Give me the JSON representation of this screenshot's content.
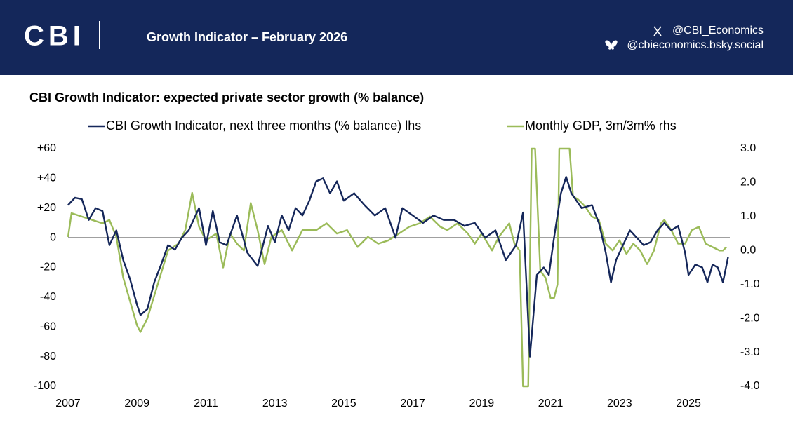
{
  "header": {
    "logo": "CBI",
    "title": "Growth Indicator – February 2026",
    "x_handle": "@CBI_Economics",
    "bluesky_handle": "@cbieconomics.bsky.social"
  },
  "chart_data": {
    "type": "line",
    "title": "CBI Growth Indicator: expected private sector growth (% balance)",
    "xlim": [
      2007,
      2026.2
    ],
    "xticks": [
      2007,
      2009,
      2011,
      2013,
      2015,
      2017,
      2019,
      2021,
      2023,
      2025
    ],
    "ylim": [
      -100,
      60
    ],
    "yticks": [
      {
        "value": 60,
        "label": "+60"
      },
      {
        "value": 40,
        "label": "+40"
      },
      {
        "value": 20,
        "label": "+20"
      },
      0,
      -20,
      -40,
      -60,
      -80,
      -100
    ],
    "y2lim": [
      -4,
      3
    ],
    "y2ticks": [
      {
        "value": 3,
        "label": "3.0"
      },
      {
        "value": 2,
        "label": "2.0"
      },
      {
        "value": 1,
        "label": "1.0"
      },
      {
        "value": 0,
        "label": "0.0"
      },
      {
        "value": -1,
        "label": "-1.0"
      },
      {
        "value": -2,
        "label": "-2.0"
      },
      {
        "value": -3,
        "label": "-3.0"
      },
      {
        "value": -4,
        "label": "-4.0"
      }
    ],
    "legend": "top",
    "series": [
      {
        "name": "CBI Growth Indicator, next three months (% balance) lhs",
        "color": "#15275a",
        "x": [
          2007.0,
          2007.2,
          2007.4,
          2007.6,
          2007.8,
          2008.0,
          2008.2,
          2008.4,
          2008.6,
          2008.8,
          2009.0,
          2009.1,
          2009.3,
          2009.5,
          2009.7,
          2009.9,
          2010.1,
          2010.3,
          2010.5,
          2010.8,
          2011.0,
          2011.2,
          2011.4,
          2011.6,
          2011.9,
          2012.2,
          2012.5,
          2012.8,
          2013.0,
          2013.2,
          2013.4,
          2013.6,
          2013.8,
          2014.0,
          2014.2,
          2014.4,
          2014.6,
          2014.8,
          2015.0,
          2015.3,
          2015.6,
          2015.9,
          2016.2,
          2016.5,
          2016.7,
          2017.0,
          2017.3,
          2017.6,
          2017.9,
          2018.2,
          2018.5,
          2018.8,
          2019.1,
          2019.4,
          2019.7,
          2020.0,
          2020.2,
          2020.4,
          2020.6,
          2020.8,
          2020.95,
          2021.1,
          2021.3,
          2021.45,
          2021.6,
          2021.9,
          2022.2,
          2022.4,
          2022.6,
          2022.75,
          2022.9,
          2023.1,
          2023.3,
          2023.5,
          2023.7,
          2023.9,
          2024.1,
          2024.3,
          2024.5,
          2024.7,
          2024.9,
          2025.0,
          2025.2,
          2025.4,
          2025.55,
          2025.7,
          2025.85,
          2026.0,
          2026.15
        ],
        "values": [
          22,
          27,
          26,
          12,
          20,
          18,
          -5,
          5,
          -15,
          -28,
          -45,
          -52,
          -48,
          -30,
          -18,
          -5,
          -8,
          0,
          5,
          20,
          -5,
          18,
          -3,
          -5,
          15,
          -10,
          -19,
          8,
          -3,
          15,
          5,
          20,
          15,
          25,
          38,
          40,
          30,
          38,
          25,
          30,
          22,
          15,
          20,
          0,
          20,
          15,
          10,
          15,
          12,
          12,
          8,
          10,
          0,
          5,
          -15,
          -5,
          17,
          -80,
          -25,
          -20,
          -25,
          0,
          30,
          41,
          30,
          20,
          22,
          10,
          -10,
          -30,
          -15,
          -5,
          5,
          0,
          -5,
          -3,
          5,
          10,
          5,
          8,
          -10,
          -25,
          -18,
          -20,
          -30,
          -18,
          -20,
          -30,
          -13
        ]
      },
      {
        "name": "Monthly GDP, 3m/3m% rhs",
        "color": "#9bbb59",
        "axis": "y2",
        "x": [
          2007.0,
          2007.1,
          2007.4,
          2007.7,
          2008.0,
          2008.2,
          2008.4,
          2008.6,
          2008.8,
          2009.0,
          2009.1,
          2009.3,
          2009.6,
          2009.9,
          2010.2,
          2010.4,
          2010.6,
          2010.8,
          2011.0,
          2011.3,
          2011.5,
          2011.7,
          2011.9,
          2012.1,
          2012.3,
          2012.5,
          2012.7,
          2012.9,
          2013.2,
          2013.5,
          2013.8,
          2014.2,
          2014.5,
          2014.8,
          2015.1,
          2015.4,
          2015.7,
          2016.0,
          2016.3,
          2016.6,
          2016.9,
          2017.2,
          2017.5,
          2017.8,
          2018.0,
          2018.3,
          2018.6,
          2018.8,
          2019.0,
          2019.3,
          2019.5,
          2019.8,
          2019.95,
          2020.1,
          2020.2,
          2020.35,
          2020.45,
          2020.55,
          2020.7,
          2020.85,
          2021.0,
          2021.1,
          2021.2,
          2021.25,
          2021.55,
          2021.65,
          2021.8,
          2022.0,
          2022.2,
          2022.4,
          2022.6,
          2022.8,
          2023.0,
          2023.2,
          2023.4,
          2023.6,
          2023.8,
          2024.0,
          2024.2,
          2024.3,
          2024.5,
          2024.7,
          2024.9,
          2025.1,
          2025.3,
          2025.5,
          2025.7,
          2025.9,
          2026.0,
          2026.1
        ],
        "values": [
          0.4,
          1.1,
          1.0,
          0.9,
          0.8,
          0.9,
          0.4,
          -0.8,
          -1.5,
          -2.2,
          -2.4,
          -2.0,
          -1.0,
          0.0,
          0.2,
          0.6,
          1.7,
          0.7,
          0.3,
          0.5,
          -0.5,
          0.5,
          0.2,
          0.0,
          1.4,
          0.6,
          -0.4,
          0.4,
          0.6,
          0.0,
          0.6,
          0.6,
          0.8,
          0.5,
          0.6,
          0.1,
          0.4,
          0.2,
          0.3,
          0.5,
          0.7,
          0.8,
          1.0,
          0.7,
          0.6,
          0.8,
          0.5,
          0.2,
          0.5,
          0.0,
          0.4,
          0.8,
          0.2,
          0.0,
          -4.0,
          -4.0,
          3.0,
          3.0,
          -0.6,
          -0.8,
          -1.4,
          -1.4,
          -1.0,
          3.0,
          3.0,
          1.6,
          1.5,
          1.3,
          1.0,
          0.9,
          0.2,
          0.0,
          0.3,
          -0.1,
          0.2,
          0.0,
          -0.4,
          0.0,
          0.8,
          0.9,
          0.6,
          0.2,
          0.2,
          0.6,
          0.7,
          0.2,
          0.1,
          0.0,
          0.0,
          0.1
        ]
      }
    ]
  }
}
